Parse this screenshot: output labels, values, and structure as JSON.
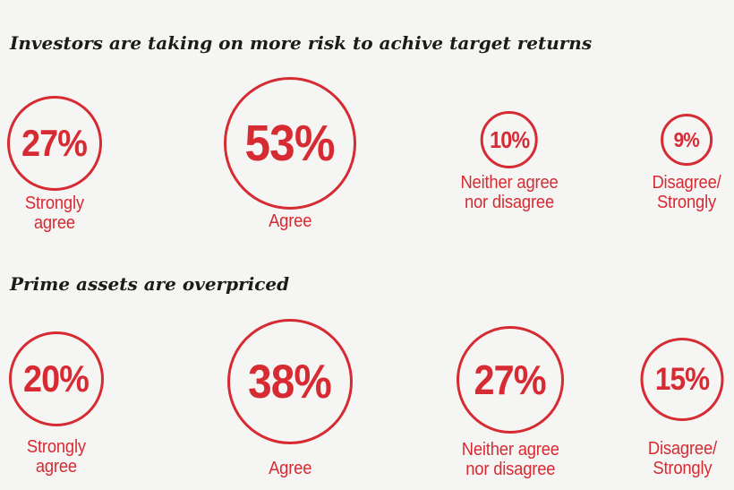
{
  "colors": {
    "accent": "#d72b33",
    "heading": "#1d1b1a",
    "background": "#f5f5f3"
  },
  "rows": [
    {
      "title": "Investors are taking on more risk to achive target returns",
      "items": [
        {
          "value": "27%",
          "label": "Strongly\nagree"
        },
        {
          "value": "53%",
          "label": "Agree"
        },
        {
          "value": "10%",
          "label": "Neither agree\nnor disagree"
        },
        {
          "value": "9%",
          "label": "Disagree/\nStrongly"
        }
      ]
    },
    {
      "title": "Prime assets are overpriced",
      "items": [
        {
          "value": "20%",
          "label": "Strongly\nagree"
        },
        {
          "value": "38%",
          "label": "Agree"
        },
        {
          "value": "27%",
          "label": "Neither agree\nnor disagree"
        },
        {
          "value": "15%",
          "label": "Disagree/\nStrongly"
        }
      ]
    }
  ],
  "chart_data": [
    {
      "type": "bar",
      "visual": "proportional-circles",
      "title": "Investors are taking on more risk to achive target returns",
      "categories": [
        "Strongly agree",
        "Agree",
        "Neither agree nor disagree",
        "Disagree/Strongly"
      ],
      "values": [
        27,
        53,
        10,
        9
      ],
      "unit": "%",
      "accent_color": "#d72b33",
      "layout": "circles sized proportional to sqrt(value), arranged left to right"
    },
    {
      "type": "bar",
      "visual": "proportional-circles",
      "title": "Prime assets are overpriced",
      "categories": [
        "Strongly agree",
        "Agree",
        "Neither agree nor disagree",
        "Disagree/Strongly"
      ],
      "values": [
        20,
        38,
        27,
        15
      ],
      "unit": "%",
      "accent_color": "#d72b33",
      "layout": "circles sized proportional to sqrt(value), arranged left to right"
    }
  ]
}
